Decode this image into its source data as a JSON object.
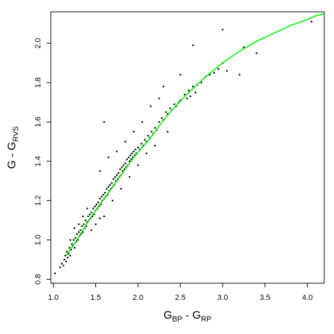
{
  "chart_data": {
    "type": "scatter",
    "title": "",
    "xlabel": {
      "main": "G",
      "sub1": "BP",
      "sep": " - G",
      "sub2": "RP"
    },
    "ylabel": {
      "main": "G - G",
      "sub": "RVS"
    },
    "xlim": [
      0.97,
      4.2
    ],
    "ylim": [
      0.78,
      2.16
    ],
    "x_ticks": [
      1.0,
      1.5,
      2.0,
      2.5,
      3.0,
      3.5,
      4.0
    ],
    "x_tick_labels": [
      "1.0",
      "1.5",
      "2.0",
      "2.5",
      "3.0",
      "3.5",
      "4.0"
    ],
    "y_ticks": [
      0.8,
      1.0,
      1.2,
      1.4,
      1.6,
      1.8,
      2.0
    ],
    "y_tick_labels": [
      "0.8",
      "1.0",
      "1.2",
      "1.4",
      "1.6",
      "1.8",
      "2.0"
    ],
    "grid": false,
    "legend": "none",
    "colors": {
      "points": "#000000",
      "fit_line": "#00ee00",
      "frame": "#000000"
    },
    "fit_line": {
      "x": [
        1.15,
        1.25,
        1.35,
        1.45,
        1.55,
        1.65,
        1.75,
        1.85,
        1.95,
        2.05,
        2.15,
        2.25,
        2.4,
        2.6,
        2.8,
        3.0,
        3.2,
        3.4,
        3.6,
        3.8,
        4.0,
        4.1,
        4.2
      ],
      "y": [
        0.92,
        0.98,
        1.05,
        1.12,
        1.18,
        1.24,
        1.3,
        1.36,
        1.42,
        1.47,
        1.52,
        1.58,
        1.66,
        1.75,
        1.83,
        1.9,
        1.96,
        2.01,
        2.05,
        2.09,
        2.12,
        2.14,
        2.15
      ]
    },
    "points": [
      [
        1.02,
        0.83
      ],
      [
        1.08,
        0.86
      ],
      [
        1.1,
        0.88
      ],
      [
        1.12,
        0.87
      ],
      [
        1.13,
        0.9
      ],
      [
        1.14,
        0.92
      ],
      [
        1.15,
        0.89
      ],
      [
        1.16,
        0.94
      ],
      [
        1.17,
        0.91
      ],
      [
        1.18,
        0.93
      ],
      [
        1.19,
        0.96
      ],
      [
        1.2,
        0.92
      ],
      [
        1.21,
        0.95
      ],
      [
        1.22,
        0.98
      ],
      [
        1.23,
        0.97
      ],
      [
        1.24,
        1.0
      ],
      [
        1.25,
        0.96
      ],
      [
        1.26,
        1.01
      ],
      [
        1.27,
        0.99
      ],
      [
        1.28,
        1.03
      ],
      [
        1.29,
        1.0
      ],
      [
        1.3,
        1.04
      ],
      [
        1.31,
        1.02
      ],
      [
        1.32,
        1.05
      ],
      [
        1.33,
        1.03
      ],
      [
        1.34,
        1.07
      ],
      [
        1.35,
        1.04
      ],
      [
        1.36,
        1.08
      ],
      [
        1.37,
        1.06
      ],
      [
        1.38,
        1.1
      ],
      [
        1.39,
        1.07
      ],
      [
        1.4,
        1.09
      ],
      [
        1.41,
        1.12
      ],
      [
        1.42,
        1.1
      ],
      [
        1.43,
        1.13
      ],
      [
        1.44,
        1.11
      ],
      [
        1.45,
        1.14
      ],
      [
        1.46,
        1.12
      ],
      [
        1.47,
        1.16
      ],
      [
        1.48,
        1.13
      ],
      [
        1.49,
        1.17
      ],
      [
        1.5,
        1.15
      ],
      [
        1.51,
        1.18
      ],
      [
        1.52,
        1.16
      ],
      [
        1.53,
        1.19
      ],
      [
        1.54,
        1.17
      ],
      [
        1.55,
        1.21
      ],
      [
        1.56,
        1.18
      ],
      [
        1.57,
        1.22
      ],
      [
        1.58,
        1.2
      ],
      [
        1.59,
        1.23
      ],
      [
        1.6,
        1.21
      ],
      [
        1.61,
        1.24
      ],
      [
        1.62,
        1.22
      ],
      [
        1.63,
        1.26
      ],
      [
        1.64,
        1.23
      ],
      [
        1.65,
        1.27
      ],
      [
        1.66,
        1.25
      ],
      [
        1.67,
        1.28
      ],
      [
        1.68,
        1.26
      ],
      [
        1.69,
        1.29
      ],
      [
        1.7,
        1.27
      ],
      [
        1.71,
        1.31
      ],
      [
        1.72,
        1.28
      ],
      [
        1.73,
        1.32
      ],
      [
        1.74,
        1.3
      ],
      [
        1.75,
        1.33
      ],
      [
        1.76,
        1.31
      ],
      [
        1.77,
        1.34
      ],
      [
        1.78,
        1.32
      ],
      [
        1.79,
        1.36
      ],
      [
        1.8,
        1.33
      ],
      [
        1.81,
        1.37
      ],
      [
        1.82,
        1.35
      ],
      [
        1.83,
        1.38
      ],
      [
        1.84,
        1.36
      ],
      [
        1.85,
        1.39
      ],
      [
        1.86,
        1.37
      ],
      [
        1.87,
        1.41
      ],
      [
        1.88,
        1.38
      ],
      [
        1.89,
        1.42
      ],
      [
        1.9,
        1.4
      ],
      [
        1.91,
        1.43
      ],
      [
        1.92,
        1.41
      ],
      [
        1.93,
        1.44
      ],
      [
        1.94,
        1.42
      ],
      [
        1.95,
        1.45
      ],
      [
        1.96,
        1.43
      ],
      [
        1.97,
        1.46
      ],
      [
        1.98,
        1.44
      ],
      [
        2.0,
        1.47
      ],
      [
        2.02,
        1.46
      ],
      [
        2.04,
        1.49
      ],
      [
        2.06,
        1.48
      ],
      [
        2.08,
        1.51
      ],
      [
        2.1,
        1.5
      ],
      [
        2.12,
        1.53
      ],
      [
        2.14,
        1.52
      ],
      [
        2.16,
        1.55
      ],
      [
        2.18,
        1.54
      ],
      [
        2.2,
        1.57
      ],
      [
        2.22,
        1.56
      ],
      [
        2.25,
        1.6
      ],
      [
        2.28,
        1.62
      ],
      [
        2.3,
        1.61
      ],
      [
        2.33,
        1.65
      ],
      [
        2.35,
        1.64
      ],
      [
        2.38,
        1.67
      ],
      [
        2.4,
        1.66
      ],
      [
        2.43,
        1.69
      ],
      [
        2.45,
        1.68
      ],
      [
        2.48,
        1.7
      ],
      [
        2.5,
        1.71
      ],
      [
        2.55,
        1.74
      ],
      [
        2.58,
        1.72
      ],
      [
        2.6,
        1.76
      ],
      [
        2.62,
        1.73
      ],
      [
        2.65,
        1.78
      ],
      [
        2.68,
        1.75
      ],
      [
        2.7,
        1.79
      ],
      [
        2.75,
        1.8
      ],
      [
        2.8,
        1.83
      ],
      [
        2.85,
        1.84
      ],
      [
        2.9,
        1.85
      ],
      [
        2.95,
        1.87
      ],
      [
        3.0,
        1.9
      ],
      [
        3.05,
        1.86
      ],
      [
        3.2,
        1.84
      ],
      [
        3.25,
        1.98
      ],
      [
        3.4,
        1.95
      ],
      [
        4.05,
        2.11
      ],
      [
        2.65,
        1.99
      ],
      [
        3.0,
        2.07
      ],
      [
        2.5,
        1.84
      ],
      [
        1.55,
        1.35
      ],
      [
        1.65,
        1.42
      ],
      [
        1.75,
        1.45
      ],
      [
        1.85,
        1.5
      ],
      [
        1.95,
        1.55
      ],
      [
        2.05,
        1.6
      ],
      [
        2.15,
        1.68
      ],
      [
        2.25,
        1.72
      ],
      [
        1.6,
        1.12
      ],
      [
        1.7,
        1.2
      ],
      [
        1.8,
        1.26
      ],
      [
        1.9,
        1.32
      ],
      [
        2.0,
        1.38
      ],
      [
        2.1,
        1.44
      ],
      [
        2.2,
        1.48
      ],
      [
        1.45,
        1.05
      ],
      [
        1.5,
        1.08
      ],
      [
        1.55,
        1.11
      ],
      [
        1.35,
        1.12
      ],
      [
        1.4,
        1.16
      ],
      [
        1.3,
        1.08
      ],
      [
        1.25,
        1.06
      ],
      [
        1.2,
        1.0
      ],
      [
        1.6,
        1.6
      ],
      [
        2.3,
        1.78
      ],
      [
        2.35,
        1.55
      ]
    ]
  }
}
